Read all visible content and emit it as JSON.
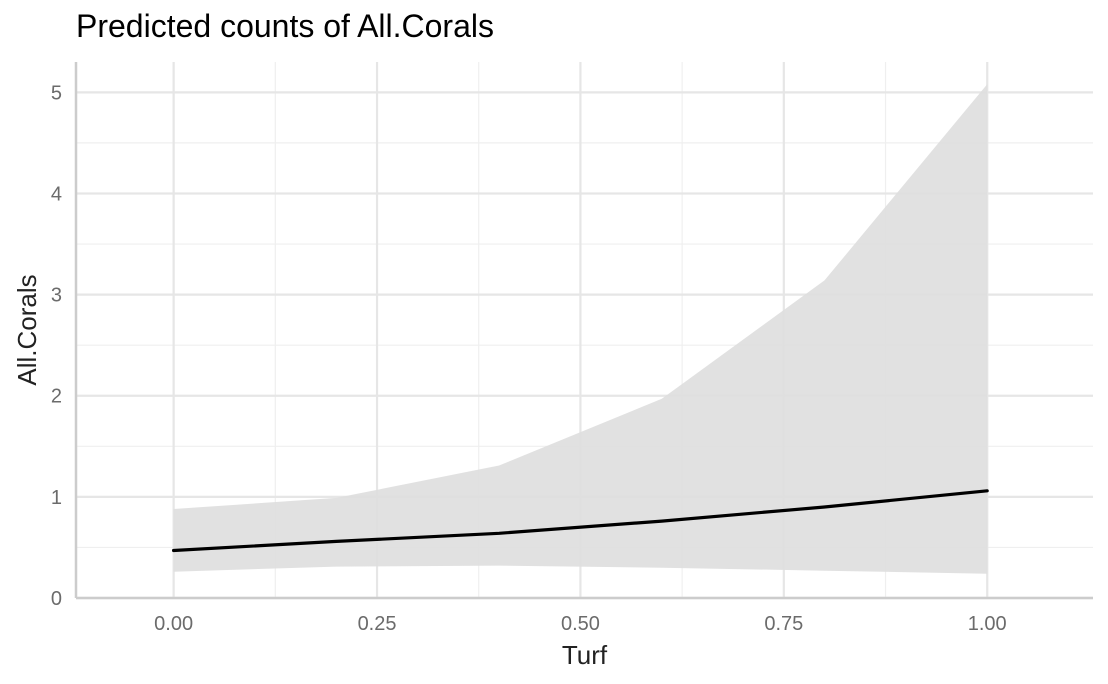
{
  "chart_data": {
    "type": "line",
    "title": "Predicted counts of All.Corals",
    "xlabel": "Turf",
    "ylabel": "All.Corals",
    "xlim": [
      -0.12,
      1.13
    ],
    "ylim": [
      0,
      5.3
    ],
    "x_ticks": [
      "0.00",
      "0.25",
      "0.50",
      "0.75",
      "1.00"
    ],
    "x_tick_values": [
      0,
      0.25,
      0.5,
      0.75,
      1.0
    ],
    "y_ticks": [
      "0",
      "1",
      "2",
      "3",
      "4",
      "5"
    ],
    "y_tick_values": [
      0,
      1,
      2,
      3,
      4,
      5
    ],
    "grid": true,
    "colors": {
      "line": "#000000",
      "ribbon": "#dedede",
      "grid": "#e6e6e6",
      "axis": "#cccccc"
    },
    "series": [
      {
        "x": [
          0.0,
          0.2,
          0.4,
          0.6,
          0.8,
          1.0
        ],
        "y": [
          0.47,
          0.56,
          0.64,
          0.76,
          0.9,
          1.06
        ],
        "lower": [
          0.26,
          0.31,
          0.32,
          0.3,
          0.27,
          0.24
        ],
        "upper": [
          0.88,
          0.99,
          1.31,
          1.97,
          3.14,
          5.08
        ]
      }
    ]
  }
}
